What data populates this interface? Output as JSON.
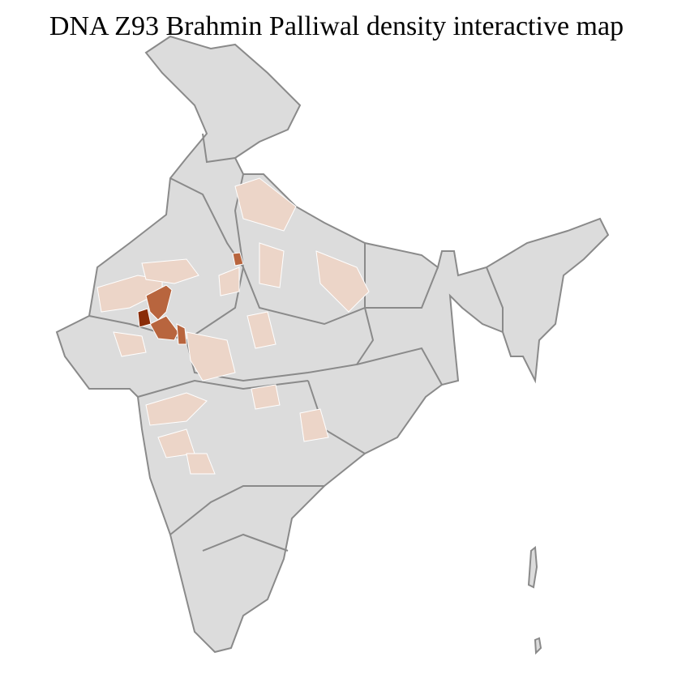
{
  "title": "DNA Z93 Brahmin Palliwal density interactive map",
  "colors": {
    "base": "#dcdcdc",
    "border": "#8a8a8a",
    "district_line": "#ffffff",
    "low": "#ecd5c8",
    "medium": "#b8653e",
    "high": "#8a2c08"
  },
  "density_levels": [
    "low",
    "medium",
    "high"
  ]
}
